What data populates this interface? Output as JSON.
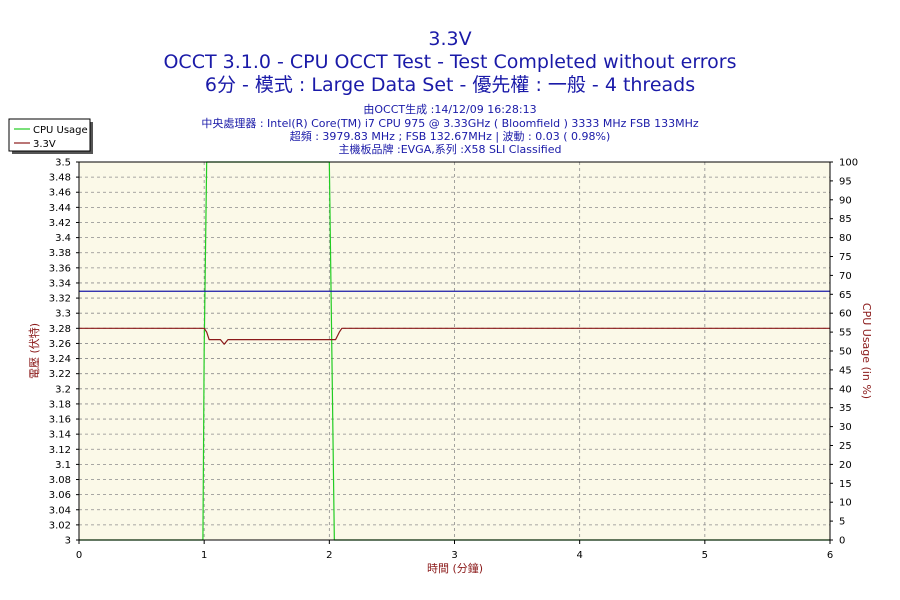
{
  "titles": {
    "line1": "3.3V",
    "line2": "OCCT 3.1.0 - CPU OCCT Test - Test Completed without errors",
    "line3": "6分 - 模式 : Large Data Set - 優先權 : 一般 - 4 threads"
  },
  "info": {
    "generated": "由OCCT生成 :14/12/09 16:28:13",
    "cpu": "中央處理器 : Intel(R) Core(TM) i7 CPU 975 @ 3.33GHz ( Bloomfield ) 3333 MHz FSB 133MHz",
    "overclock": "超頻 : 3979.83 MHz ; FSB 132.67MHz | 波動 : 0.03 ( 0.98%)",
    "motherboard": "主機板品牌 :EVGA,系列 :X58 SLI Classified"
  },
  "colors": {
    "plot_bg": "#fbf9e8",
    "grid": "#8c8c8c",
    "cpu_usage": "#22cc22",
    "voltage": "#8b1a1a",
    "blue_line": "#1a1aa8",
    "axis_title": "#8b1a1a"
  },
  "chart_data": {
    "type": "line",
    "xlabel": "時間 (分鐘)",
    "ylabel_left": "電壓 (伏特)",
    "ylabel_right": "CPU Usage (in %)",
    "xlim": [
      0,
      6
    ],
    "ylim_left": [
      3.0,
      3.5
    ],
    "ylim_right": [
      0,
      100
    ],
    "x_ticks": [
      "0",
      "1",
      "2",
      "3",
      "4",
      "5",
      "6"
    ],
    "y_ticks_left": [
      "3",
      "3.02",
      "3.04",
      "3.06",
      "3.08",
      "3.1",
      "3.12",
      "3.14",
      "3.16",
      "3.18",
      "3.2",
      "3.22",
      "3.24",
      "3.26",
      "3.28",
      "3.3",
      "3.32",
      "3.34",
      "3.36",
      "3.38",
      "3.4",
      "3.42",
      "3.44",
      "3.46",
      "3.48",
      "3.5"
    ],
    "y_ticks_right": [
      "0",
      "5",
      "10",
      "15",
      "20",
      "25",
      "30",
      "35",
      "40",
      "45",
      "50",
      "55",
      "60",
      "65",
      "70",
      "75",
      "80",
      "85",
      "90",
      "95",
      "100"
    ],
    "grid": true,
    "legend_position": "top-left",
    "series": [
      {
        "name": "CPU Usage",
        "axis": "right",
        "x": [
          0,
          0.99,
          1.0,
          1.02,
          1.04,
          1.97,
          2.0,
          2.02,
          2.04,
          6.0
        ],
        "y": [
          0,
          0,
          50,
          100,
          100,
          100,
          100,
          50,
          0,
          0
        ]
      },
      {
        "name": "3.3V",
        "axis": "left",
        "x": [
          0,
          1.0,
          1.02,
          1.04,
          1.13,
          1.16,
          1.19,
          2.05,
          2.08,
          2.1,
          6.0
        ],
        "y": [
          3.28,
          3.28,
          3.275,
          3.265,
          3.265,
          3.259,
          3.265,
          3.265,
          3.275,
          3.28,
          3.28
        ]
      },
      {
        "name": "",
        "axis": "left",
        "x": [
          0,
          6.0
        ],
        "y": [
          3.329,
          3.329
        ]
      }
    ]
  }
}
